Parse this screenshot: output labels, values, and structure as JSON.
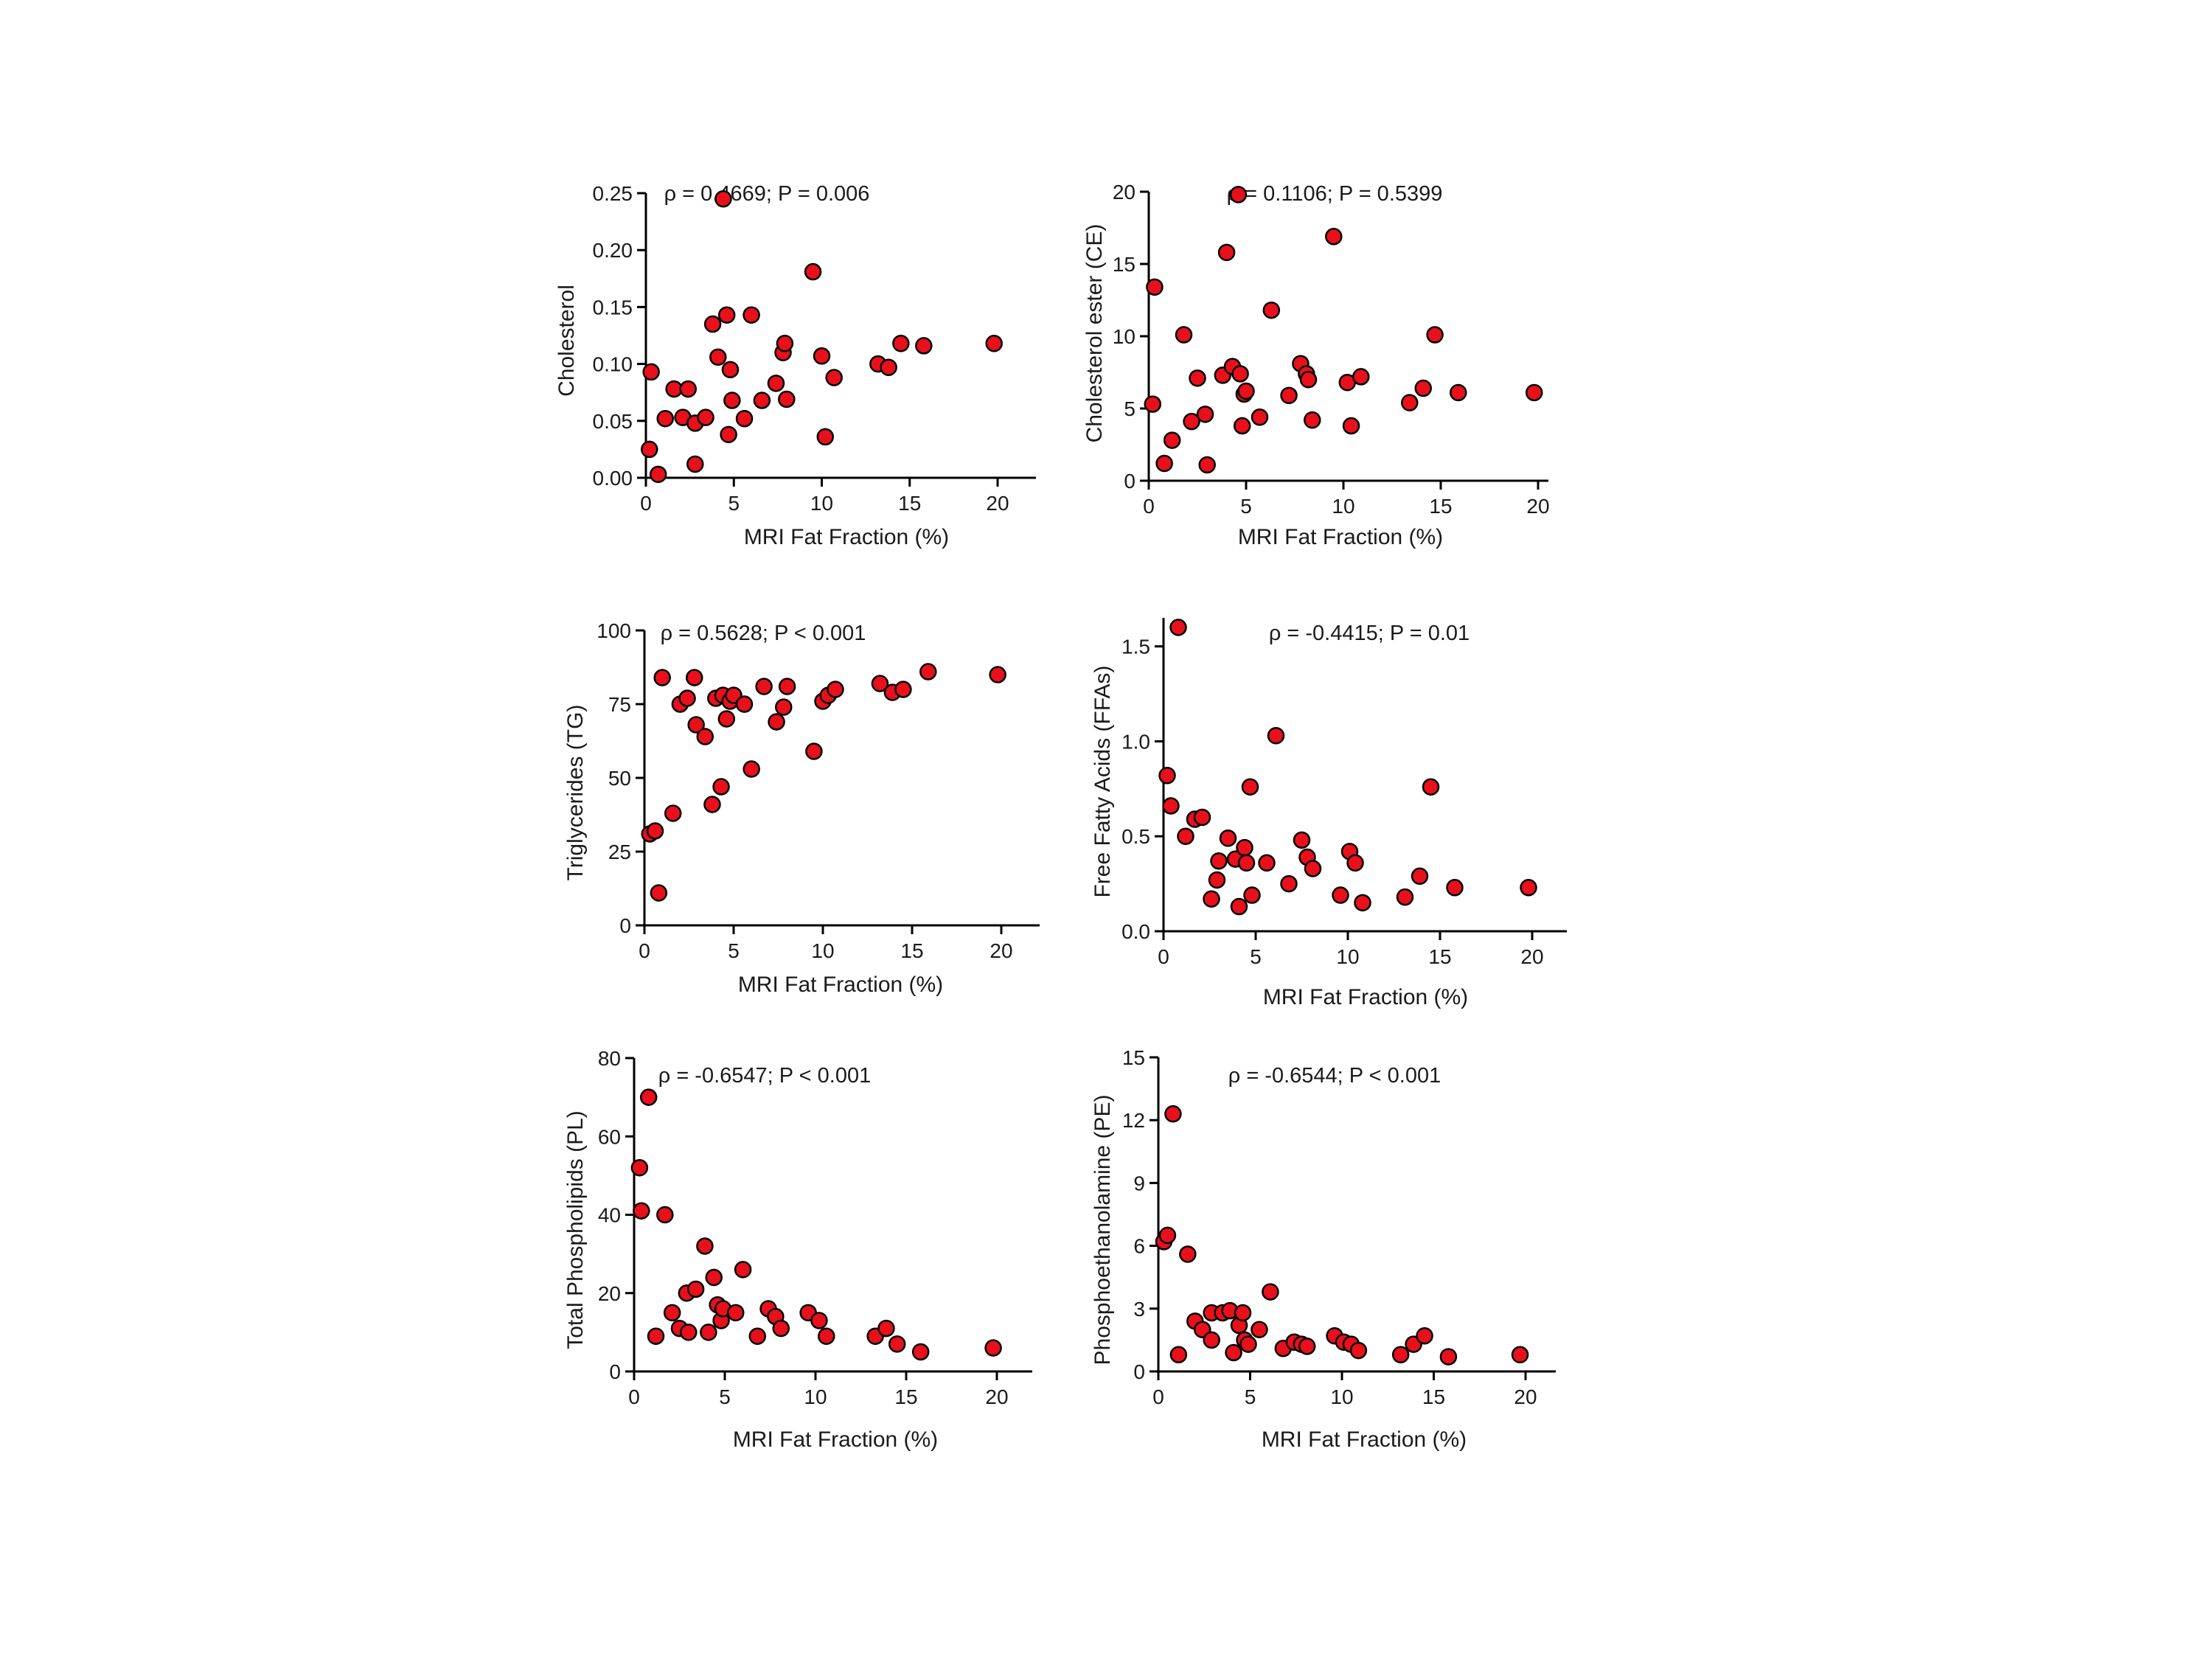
{
  "colors": {
    "marker_fill": "#e8101a",
    "marker_stroke": "#000000",
    "axis": "#000000"
  },
  "chart_data": [
    {
      "type": "scatter",
      "xlabel": "MRI Fat Fraction (%)",
      "ylabel": "Cholesterol",
      "annotation": "ρ = 0.4669;  P = 0.006",
      "xlim": [
        0,
        22
      ],
      "ylim": [
        0,
        0.25
      ],
      "xticks": [
        0,
        5,
        10,
        15,
        20
      ],
      "xtick_labels": [
        "0",
        "5",
        "10",
        "15",
        "20"
      ],
      "yticks": [
        0,
        0.05,
        0.1,
        0.15,
        0.2,
        0.25
      ],
      "ytick_labels": [
        "0.00",
        "0.05",
        "0.10",
        "0.15",
        "0.20",
        "0.25"
      ],
      "points": [
        [
          4.4,
          0.245
        ],
        [
          0.2,
          0.025
        ],
        [
          0.3,
          0.093
        ],
        [
          0.7,
          0.003
        ],
        [
          1.1,
          0.052
        ],
        [
          1.6,
          0.078
        ],
        [
          2.1,
          0.053
        ],
        [
          2.4,
          0.078
        ],
        [
          2.8,
          0.012
        ],
        [
          2.8,
          0.048
        ],
        [
          3.4,
          0.053
        ],
        [
          3.8,
          0.135
        ],
        [
          4.1,
          0.106
        ],
        [
          4.6,
          0.143
        ],
        [
          4.7,
          0.038
        ],
        [
          4.8,
          0.095
        ],
        [
          4.9,
          0.068
        ],
        [
          5.6,
          0.052
        ],
        [
          6.0,
          0.143
        ],
        [
          6.6,
          0.068
        ],
        [
          7.4,
          0.083
        ],
        [
          7.8,
          0.11
        ],
        [
          7.9,
          0.118
        ],
        [
          8.0,
          0.069
        ],
        [
          9.5,
          0.181
        ],
        [
          10.0,
          0.107
        ],
        [
          10.2,
          0.036
        ],
        [
          10.7,
          0.088
        ],
        [
          13.2,
          0.1
        ],
        [
          13.8,
          0.097
        ],
        [
          14.5,
          0.118
        ],
        [
          15.8,
          0.116
        ],
        [
          19.8,
          0.118
        ]
      ]
    },
    {
      "type": "scatter",
      "xlabel": "MRI Fat Fraction (%)",
      "ylabel": "Cholesterol  ester (CE)",
      "annotation": "ρ = 0.1106; P = 0.5399",
      "xlim": [
        0,
        21
      ],
      "ylim": [
        0,
        20
      ],
      "xticks": [
        0,
        5,
        10,
        15,
        20
      ],
      "xtick_labels": [
        "0",
        "5",
        "10",
        "15",
        "20"
      ],
      "yticks": [
        0,
        5,
        10,
        15,
        20
      ],
      "ytick_labels": [
        "0",
        "5",
        "10",
        "15",
        "20"
      ],
      "points": [
        [
          4.6,
          19.8
        ],
        [
          9.5,
          16.9
        ],
        [
          0.3,
          13.4
        ],
        [
          4.0,
          15.8
        ],
        [
          6.3,
          11.8
        ],
        [
          1.8,
          10.1
        ],
        [
          14.7,
          10.1
        ],
        [
          0.2,
          5.3
        ],
        [
          0.8,
          1.2
        ],
        [
          1.2,
          2.8
        ],
        [
          2.2,
          4.1
        ],
        [
          2.5,
          7.1
        ],
        [
          2.9,
          4.6
        ],
        [
          3.0,
          1.1
        ],
        [
          3.8,
          7.3
        ],
        [
          4.3,
          7.9
        ],
        [
          4.7,
          7.4
        ],
        [
          4.8,
          3.8
        ],
        [
          4.9,
          6.0
        ],
        [
          5.0,
          6.2
        ],
        [
          5.7,
          4.4
        ],
        [
          7.2,
          5.9
        ],
        [
          7.8,
          8.1
        ],
        [
          8.1,
          7.4
        ],
        [
          8.2,
          7.0
        ],
        [
          8.4,
          4.2
        ],
        [
          10.2,
          6.8
        ],
        [
          10.4,
          3.8
        ],
        [
          10.9,
          7.2
        ],
        [
          13.4,
          5.4
        ],
        [
          14.1,
          6.4
        ],
        [
          15.9,
          6.1
        ],
        [
          19.8,
          6.1
        ]
      ]
    },
    {
      "type": "scatter",
      "xlabel": "MRI Fat Fraction (%)",
      "ylabel": "Triglycerides (TG)",
      "annotation": "ρ = 0.5628;    P < 0.001",
      "xlim": [
        0,
        22
      ],
      "ylim": [
        0,
        100
      ],
      "xticks": [
        0,
        5,
        10,
        15,
        20
      ],
      "xtick_labels": [
        "0",
        "5",
        "10",
        "15",
        "20"
      ],
      "yticks": [
        0,
        25,
        50,
        75,
        100
      ],
      "ytick_labels": [
        "0",
        "25",
        "50",
        "75",
        "100"
      ],
      "points": [
        [
          0.3,
          31
        ],
        [
          0.6,
          32
        ],
        [
          0.8,
          11
        ],
        [
          1.0,
          84
        ],
        [
          1.6,
          38
        ],
        [
          2.0,
          75
        ],
        [
          2.4,
          77
        ],
        [
          2.8,
          84
        ],
        [
          2.9,
          68
        ],
        [
          3.4,
          64
        ],
        [
          3.8,
          41
        ],
        [
          4.0,
          77
        ],
        [
          4.3,
          47
        ],
        [
          4.4,
          78
        ],
        [
          4.6,
          70
        ],
        [
          4.8,
          76
        ],
        [
          5.0,
          78
        ],
        [
          5.6,
          75
        ],
        [
          6.0,
          53
        ],
        [
          6.7,
          81
        ],
        [
          7.4,
          69
        ],
        [
          7.8,
          74
        ],
        [
          8.0,
          81
        ],
        [
          9.5,
          59
        ],
        [
          10.0,
          76
        ],
        [
          10.3,
          78
        ],
        [
          10.7,
          80
        ],
        [
          13.2,
          82
        ],
        [
          13.9,
          79
        ],
        [
          14.5,
          80
        ],
        [
          15.9,
          86
        ],
        [
          19.8,
          85
        ]
      ]
    },
    {
      "type": "scatter",
      "xlabel": "MRI Fat Fraction (%)",
      "ylabel": "Free Fatty Acids (FFAs)",
      "annotation": "ρ = -0.4415; P = 0.01",
      "xlim": [
        0,
        22
      ],
      "ylim": [
        0,
        1.65
      ],
      "xticks": [
        0,
        5,
        10,
        15,
        20
      ],
      "xtick_labels": [
        "0",
        "5",
        "10",
        "15",
        "20"
      ],
      "yticks": [
        0,
        0.5,
        1.0,
        1.5
      ],
      "ytick_labels": [
        "0.0",
        "0.5",
        "1.0",
        "1.5"
      ],
      "points": [
        [
          0.8,
          1.6
        ],
        [
          0.2,
          0.82
        ],
        [
          0.4,
          0.66
        ],
        [
          1.2,
          0.5
        ],
        [
          1.7,
          0.59
        ],
        [
          2.1,
          0.6
        ],
        [
          2.6,
          0.17
        ],
        [
          2.9,
          0.27
        ],
        [
          3.0,
          0.37
        ],
        [
          3.5,
          0.49
        ],
        [
          3.9,
          0.38
        ],
        [
          4.1,
          0.13
        ],
        [
          4.4,
          0.44
        ],
        [
          4.5,
          0.36
        ],
        [
          4.7,
          0.76
        ],
        [
          4.8,
          0.19
        ],
        [
          5.6,
          0.36
        ],
        [
          6.1,
          1.03
        ],
        [
          6.8,
          0.25
        ],
        [
          7.5,
          0.48
        ],
        [
          7.8,
          0.39
        ],
        [
          8.1,
          0.33
        ],
        [
          9.6,
          0.19
        ],
        [
          10.1,
          0.42
        ],
        [
          10.4,
          0.36
        ],
        [
          10.8,
          0.15
        ],
        [
          13.1,
          0.18
        ],
        [
          13.9,
          0.29
        ],
        [
          14.5,
          0.76
        ],
        [
          15.8,
          0.23
        ],
        [
          19.8,
          0.23
        ]
      ]
    },
    {
      "type": "scatter",
      "xlabel": "MRI Fat Fraction (%)",
      "ylabel": "Total Phospholipids (PL)",
      "annotation": "ρ = -0.6547;  P < 0.001",
      "xlim": [
        0,
        22
      ],
      "ylim": [
        0,
        80
      ],
      "xticks": [
        0,
        5,
        10,
        15,
        20
      ],
      "xtick_labels": [
        "0",
        "5",
        "10",
        "15",
        "20"
      ],
      "yticks": [
        0,
        20,
        40,
        60,
        80
      ],
      "ytick_labels": [
        "0",
        "20",
        "40",
        "60",
        "80"
      ],
      "points": [
        [
          0.8,
          70
        ],
        [
          0.3,
          52
        ],
        [
          0.4,
          41
        ],
        [
          1.2,
          9
        ],
        [
          1.7,
          40
        ],
        [
          2.1,
          15
        ],
        [
          2.5,
          11
        ],
        [
          2.9,
          20
        ],
        [
          3.0,
          10
        ],
        [
          3.4,
          21
        ],
        [
          3.9,
          32
        ],
        [
          4.1,
          10
        ],
        [
          4.4,
          24
        ],
        [
          4.6,
          17
        ],
        [
          4.8,
          13
        ],
        [
          4.9,
          16
        ],
        [
          5.6,
          15
        ],
        [
          6.0,
          26
        ],
        [
          6.8,
          9
        ],
        [
          7.4,
          16
        ],
        [
          7.8,
          14
        ],
        [
          8.1,
          11
        ],
        [
          9.6,
          15
        ],
        [
          10.2,
          13
        ],
        [
          10.6,
          9
        ],
        [
          13.3,
          9
        ],
        [
          13.9,
          11
        ],
        [
          14.5,
          7
        ],
        [
          15.8,
          5
        ],
        [
          19.8,
          6
        ]
      ]
    },
    {
      "type": "scatter",
      "xlabel": "MRI Fat Fraction (%)",
      "ylabel": "Phosphoethanolamine (PE)",
      "annotation": "ρ = -0.6544; P < 0.001",
      "xlim": [
        0,
        22
      ],
      "ylim": [
        0,
        15
      ],
      "xticks": [
        0,
        5,
        10,
        15,
        20
      ],
      "xtick_labels": [
        "0",
        "5",
        "10",
        "15",
        "20"
      ],
      "yticks": [
        0,
        3,
        6,
        9,
        12,
        15
      ],
      "ytick_labels": [
        "0",
        "3",
        "6",
        "9",
        "12",
        "15"
      ],
      "points": [
        [
          0.8,
          12.3
        ],
        [
          0.3,
          6.2
        ],
        [
          0.5,
          6.5
        ],
        [
          1.1,
          0.8
        ],
        [
          1.6,
          5.6
        ],
        [
          2.0,
          2.4
        ],
        [
          2.4,
          2.0
        ],
        [
          2.9,
          1.5
        ],
        [
          2.9,
          2.8
        ],
        [
          3.5,
          2.8
        ],
        [
          3.9,
          2.9
        ],
        [
          4.1,
          0.9
        ],
        [
          4.4,
          2.2
        ],
        [
          4.6,
          2.8
        ],
        [
          4.7,
          1.5
        ],
        [
          4.9,
          1.3
        ],
        [
          5.5,
          2.0
        ],
        [
          6.1,
          3.8
        ],
        [
          6.8,
          1.1
        ],
        [
          7.4,
          1.4
        ],
        [
          7.8,
          1.3
        ],
        [
          8.1,
          1.2
        ],
        [
          9.6,
          1.7
        ],
        [
          10.1,
          1.4
        ],
        [
          10.5,
          1.3
        ],
        [
          10.9,
          1.0
        ],
        [
          13.2,
          0.8
        ],
        [
          13.9,
          1.3
        ],
        [
          14.5,
          1.7
        ],
        [
          15.8,
          0.7
        ],
        [
          19.7,
          0.8
        ]
      ]
    }
  ]
}
